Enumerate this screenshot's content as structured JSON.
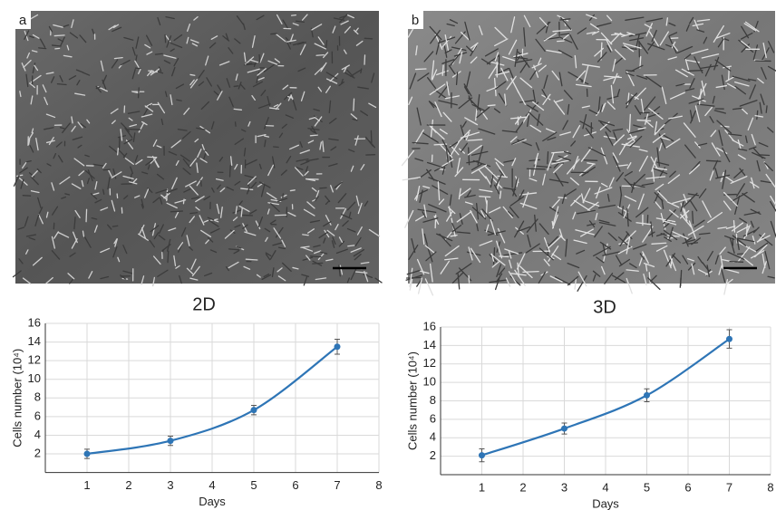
{
  "panels": [
    {
      "label": "a"
    },
    {
      "label": "b"
    }
  ],
  "chart_data": [
    {
      "type": "line",
      "title": "2D",
      "x_label": "Days",
      "y_label": "Cells number (10⁴)",
      "x": [
        1,
        3,
        5,
        7
      ],
      "series": [
        {
          "color": "#2e75b6",
          "values": [
            2.0,
            3.4,
            6.7,
            13.5
          ],
          "errors": [
            0.5,
            0.5,
            0.5,
            0.8
          ]
        }
      ],
      "xlim": [
        0,
        8
      ],
      "xticks": [
        1,
        2,
        3,
        4,
        5,
        6,
        7,
        8
      ],
      "ylim": [
        0,
        16
      ],
      "yticks": [
        2,
        4,
        6,
        8,
        10,
        12,
        14,
        16
      ],
      "grid": true
    },
    {
      "type": "line",
      "title": "3D",
      "x_label": "Days",
      "y_label": "Cells number (10⁴)",
      "x": [
        1,
        3,
        5,
        7
      ],
      "series": [
        {
          "color": "#2e75b6",
          "values": [
            2.1,
            5.0,
            8.6,
            14.7
          ],
          "errors": [
            0.7,
            0.6,
            0.7,
            1.0
          ]
        }
      ],
      "xlim": [
        0,
        8
      ],
      "xticks": [
        1,
        2,
        3,
        4,
        5,
        6,
        7,
        8
      ],
      "ylim": [
        0,
        16
      ],
      "yticks": [
        2,
        4,
        6,
        8,
        10,
        12,
        14,
        16
      ],
      "grid": true
    }
  ]
}
